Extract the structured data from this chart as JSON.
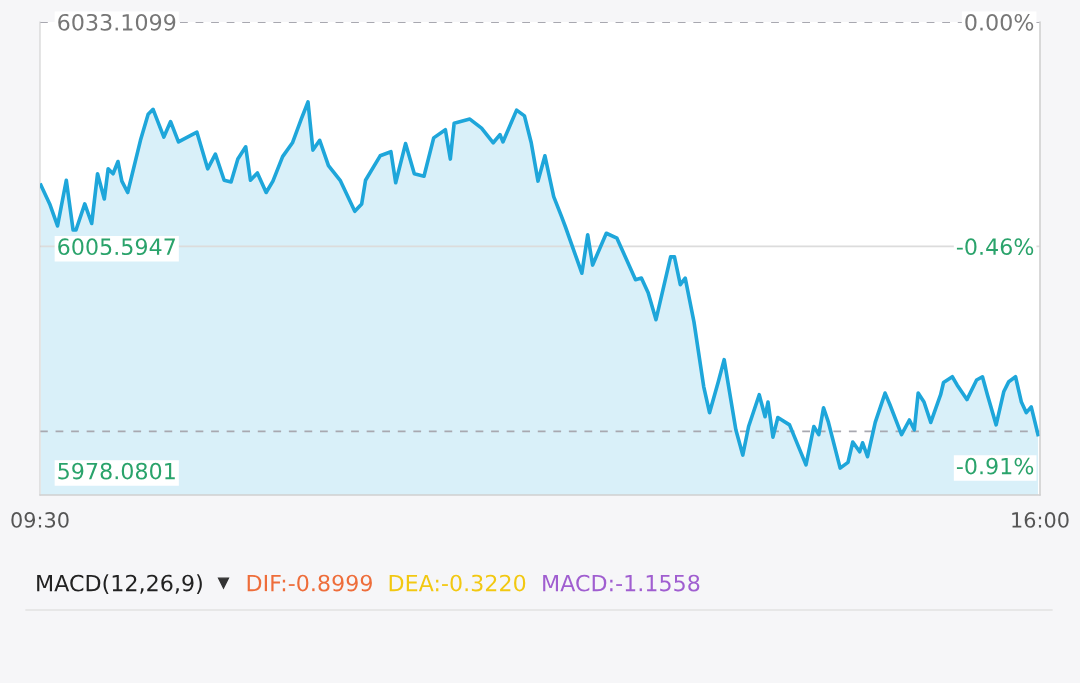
{
  "chart_data": [
    {
      "type": "area",
      "x": [
        9.506,
        9.563,
        9.614,
        9.671,
        9.715,
        9.734,
        9.791,
        9.836,
        9.874,
        9.918,
        9.943,
        9.975,
        10.007,
        10.032,
        10.07,
        10.153,
        10.203,
        10.235,
        10.305,
        10.349,
        10.4,
        10.52,
        10.59,
        10.64,
        10.697,
        10.742,
        10.786,
        10.837,
        10.868,
        10.913,
        10.97,
        11.014,
        11.077,
        11.141,
        11.198,
        11.242,
        11.274,
        11.318,
        11.375,
        11.451,
        11.546,
        11.591,
        11.616,
        11.711,
        11.781,
        11.812,
        11.876,
        11.933,
        11.996,
        12.059,
        12.135,
        12.167,
        12.192,
        12.294,
        12.37,
        12.446,
        12.49,
        12.509,
        12.598,
        12.649,
        12.693,
        12.737,
        12.782,
        12.839,
        12.889,
        12.915,
        13.022,
        13.06,
        13.092,
        13.181,
        13.25,
        13.371,
        13.409,
        13.453,
        13.504,
        13.599,
        13.624,
        13.662,
        13.694,
        13.751,
        13.814,
        13.852,
        13.909,
        13.947,
        14.023,
        14.068,
        14.106,
        14.175,
        14.213,
        14.232,
        14.264,
        14.296,
        14.372,
        14.479,
        14.53,
        14.562,
        14.593,
        14.625,
        14.701,
        14.752,
        14.783,
        14.828,
        14.847,
        14.879,
        14.929,
        14.993,
        15.024,
        15.1,
        15.151,
        15.183,
        15.208,
        15.246,
        15.29,
        15.354,
        15.373,
        15.43,
        15.461,
        15.525,
        15.588,
        15.626,
        15.658,
        15.715,
        15.765,
        15.797,
        15.841,
        15.879,
        15.911,
        15.943,
        15.987
      ],
      "series": [
        {
          "color": "#1ea6da",
          "values": [
            6013.1,
            6010.8,
            6008.1,
            6013.7,
            6007.6,
            6007.6,
            6010.8,
            6008.4,
            6014.5,
            6011.4,
            6015.1,
            6014.5,
            6016.0,
            6013.6,
            6012.2,
            6018.6,
            6021.8,
            6022.4,
            6019.0,
            6020.9,
            6018.4,
            6019.6,
            6015.1,
            6016.9,
            6013.7,
            6013.5,
            6016.3,
            6017.8,
            6013.7,
            6014.6,
            6012.2,
            6013.6,
            6016.6,
            6018.3,
            6021.2,
            6023.3,
            6017.4,
            6018.6,
            6015.5,
            6013.7,
            6009.9,
            6010.8,
            6013.7,
            6016.7,
            6017.2,
            6013.4,
            6018.2,
            6014.5,
            6014.2,
            6018.9,
            6019.9,
            6016.3,
            6020.7,
            6021.2,
            6020.1,
            6018.3,
            6019.3,
            6018.4,
            6022.3,
            6021.6,
            6018.3,
            6013.6,
            6016.7,
            6011.7,
            6009.3,
            6008.0,
            6002.3,
            6007.0,
            6003.3,
            6007.2,
            6006.6,
            6001.5,
            6001.7,
            5999.9,
            5996.6,
            6004.3,
            6004.3,
            6000.9,
            6001.7,
            5996.3,
            5988.4,
            5985.2,
            5989.0,
            5991.7,
            5983.1,
            5980.0,
            5983.5,
            5987.4,
            5984.7,
            5986.5,
            5982.2,
            5984.6,
            5983.7,
            5978.8,
            5983.5,
            5982.5,
            5985.8,
            5984.0,
            5978.4,
            5979.1,
            5981.6,
            5980.4,
            5981.5,
            5979.8,
            5984.0,
            5987.6,
            5986.2,
            5982.5,
            5984.3,
            5983.1,
            5987.6,
            5986.5,
            5984.0,
            5987.4,
            5988.9,
            5989.6,
            5988.6,
            5986.8,
            5989.2,
            5989.6,
            5987.4,
            5983.7,
            5987.8,
            5989.0,
            5989.6,
            5986.5,
            5985.2,
            5985.9,
            5982.5
          ]
        }
      ],
      "xlim": [
        9.5,
        16.0
      ],
      "xticks": [
        {
          "value": 9.5,
          "label": "09:30"
        },
        {
          "value": 16.0,
          "label": "16:00"
        }
      ],
      "ylim": [
        5975.1,
        6033.1099
      ],
      "yticks": [
        6033.1099,
        6005.5947,
        5978.0801
      ],
      "y2lim": [
        -0.97,
        0
      ],
      "y2ticks": [
        {
          "value": 0,
          "label": "0.00%"
        },
        {
          "value": -0.46,
          "label": "-0.46%"
        },
        {
          "value": -0.91,
          "label": "-0.91%"
        }
      ],
      "ref_lines": [
        {
          "axis": "y",
          "value": 6033.1099,
          "color": "#a8a8b0",
          "line_style": "dashed"
        },
        {
          "axis": "y",
          "value": 6005.5947,
          "color": "#dcdcdc",
          "line_style": "solid"
        },
        {
          "axis": "y",
          "value": 5982.9,
          "color": "#a8a8b0",
          "line_style": "dashed"
        }
      ],
      "grid": false,
      "legend": false
    },
    {
      "type": "other",
      "title": "MACD(12,26,9)",
      "annotations": [
        "DIF:-0.8999",
        "DEA:-0.3220",
        "MACD:-1.1558"
      ],
      "colors": [
        "#ee6d3a",
        "#f2c811",
        "#a05ed0"
      ]
    }
  ]
}
